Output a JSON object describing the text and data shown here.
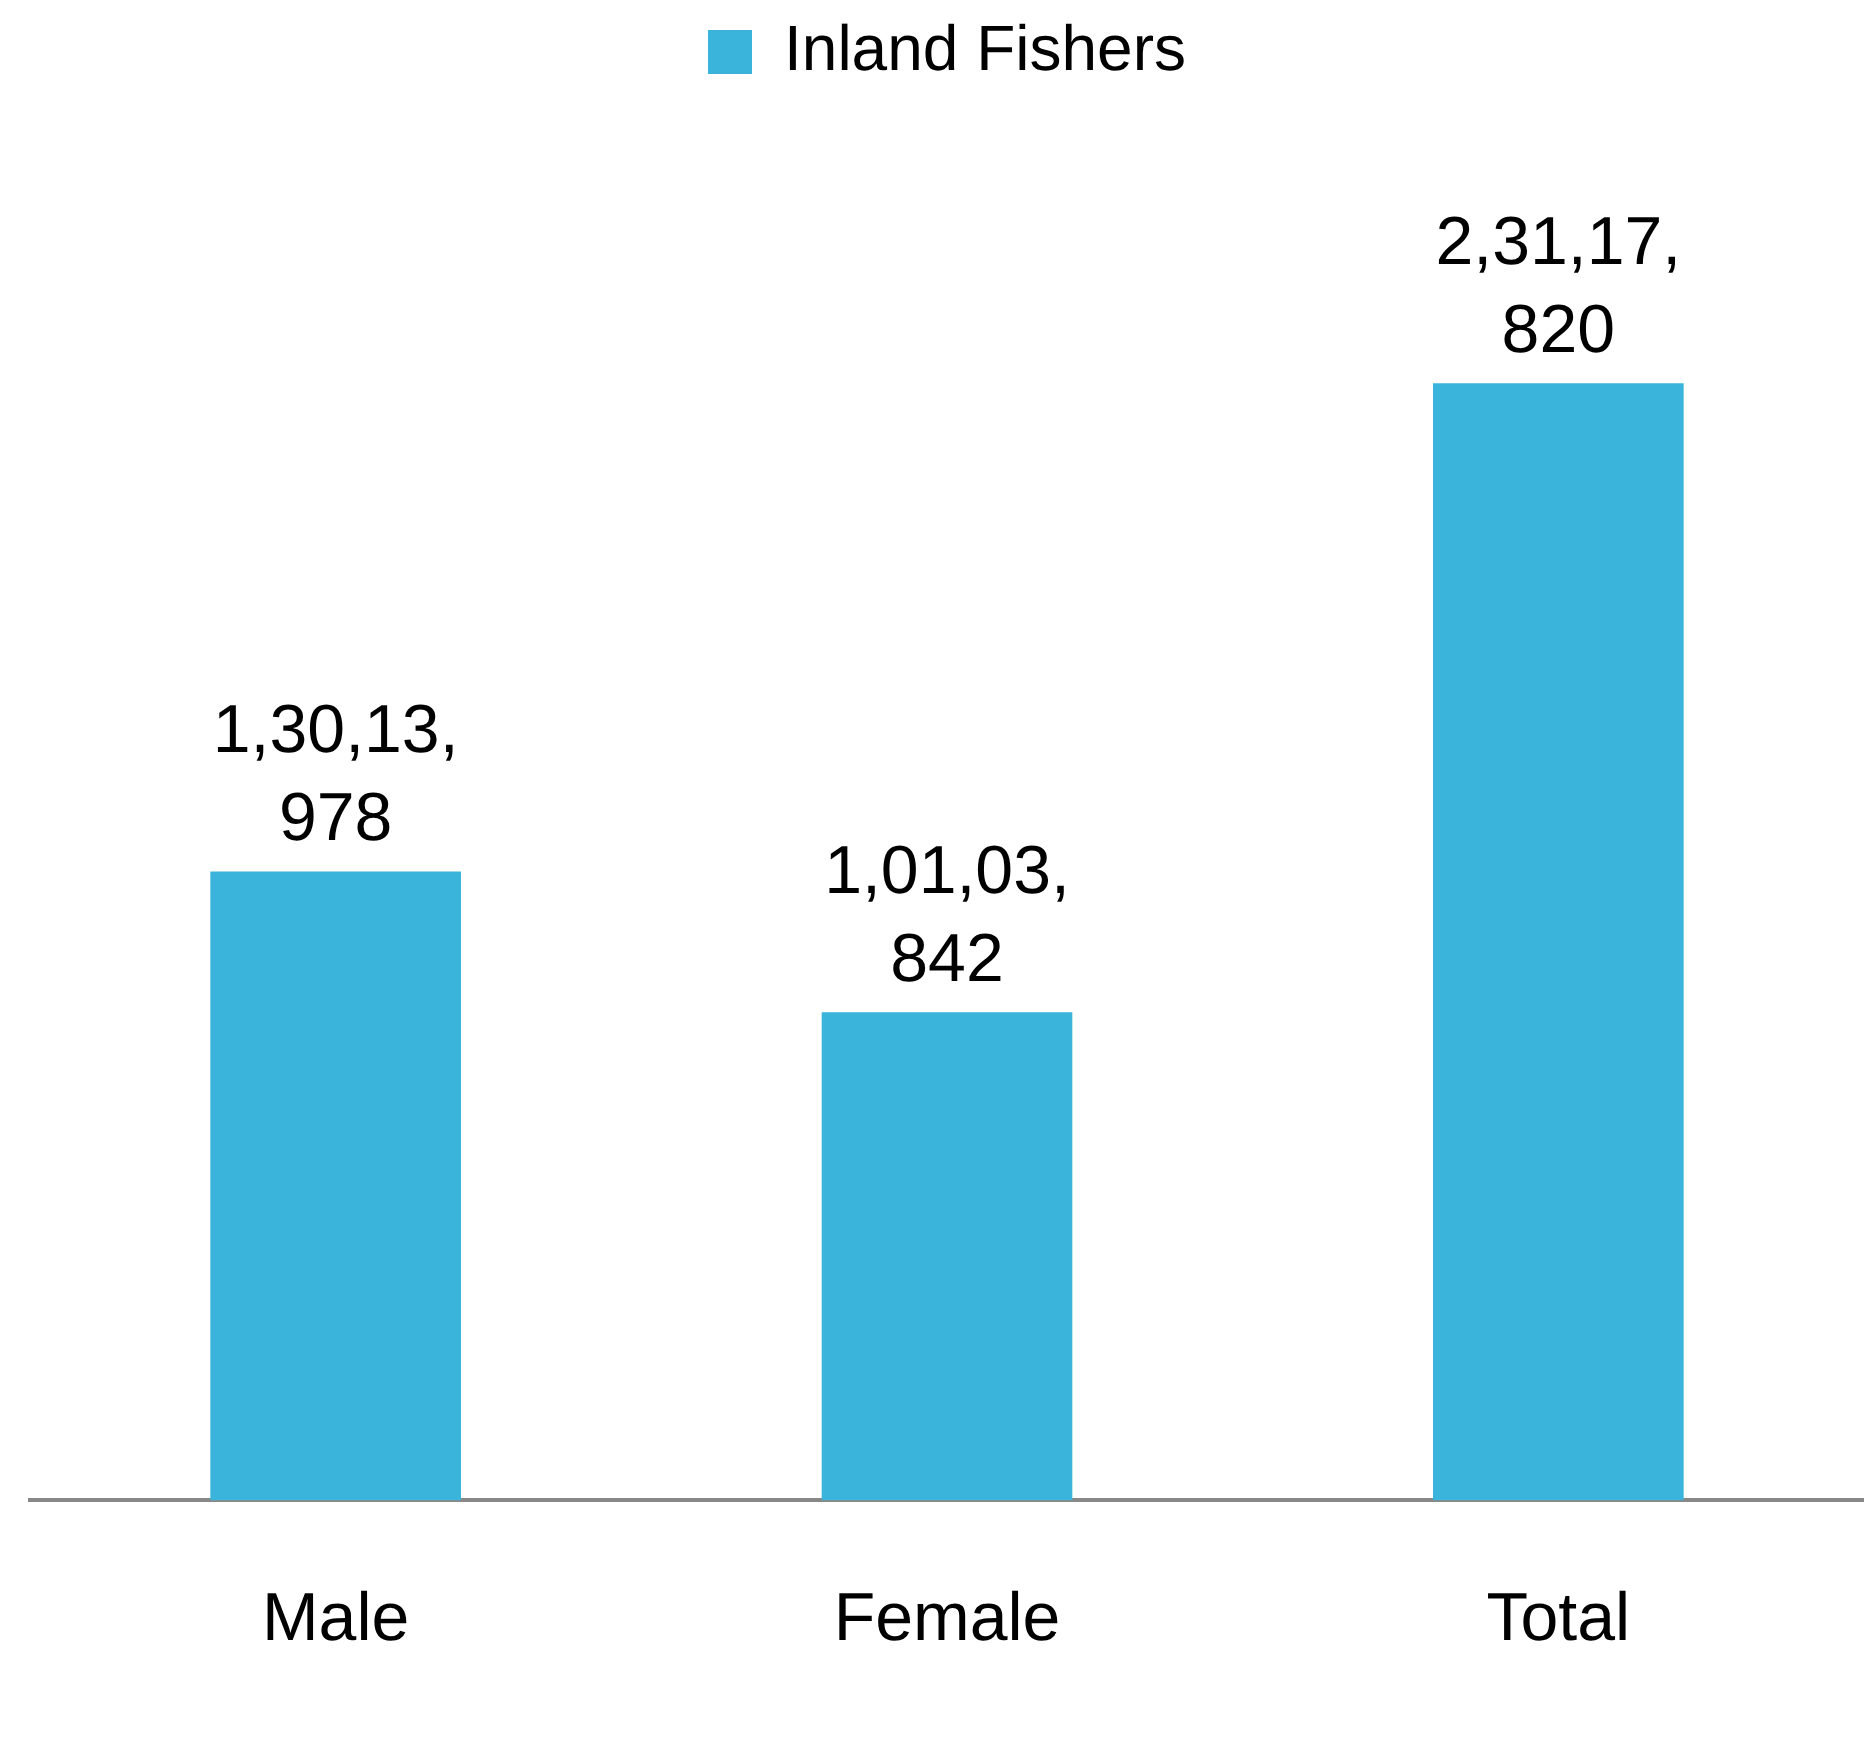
{
  "chart_data": {
    "type": "bar",
    "categories": [
      "Male",
      "Female",
      "Total"
    ],
    "series": [
      {
        "name": "Inland Fishers",
        "color": "#3ab4db",
        "values": [
          13013978,
          10103842,
          23117820
        ],
        "value_labels": [
          "1,30,13,978",
          "1,01,03,842",
          "2,31,17,820"
        ]
      }
    ],
    "legend": "top",
    "grid": false,
    "tick_labels": "x"
  }
}
